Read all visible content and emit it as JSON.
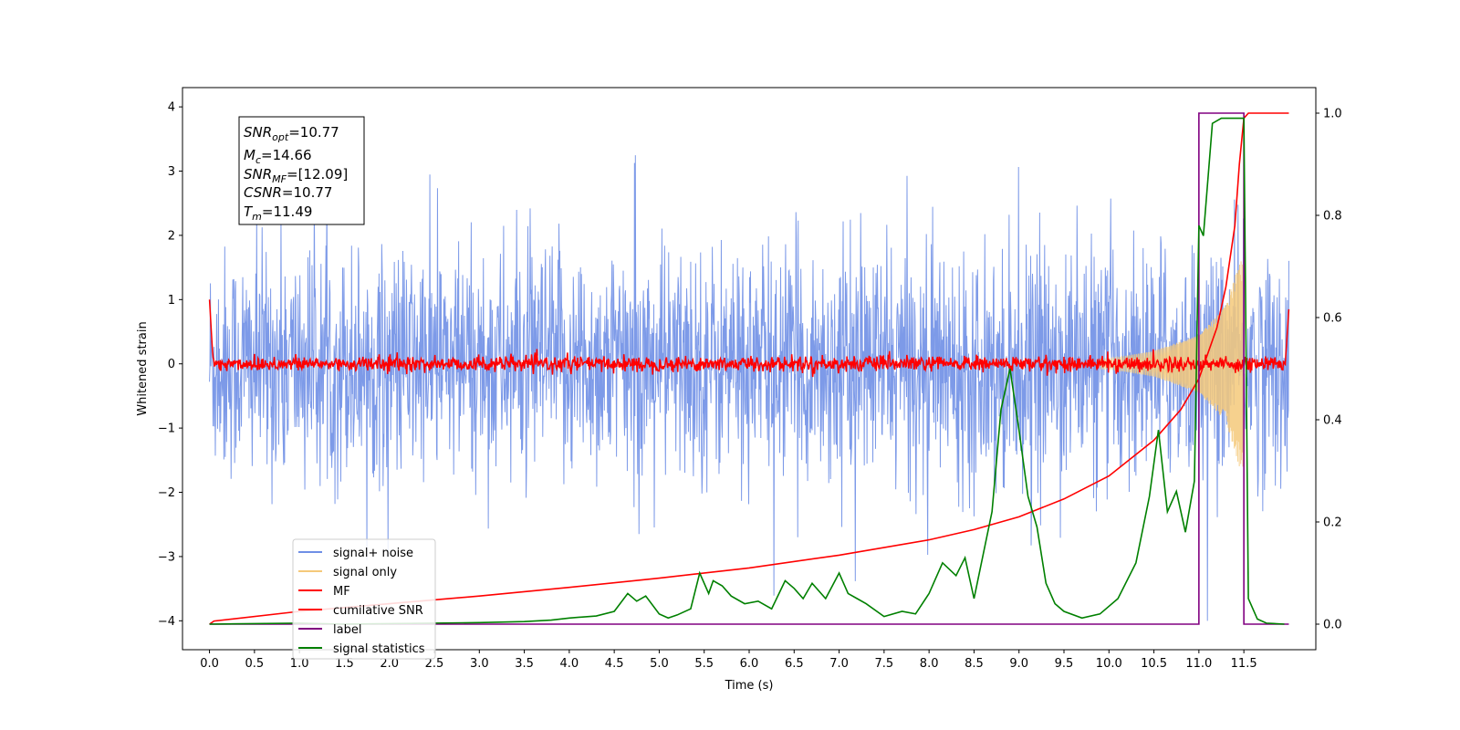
{
  "chart_data": {
    "type": "line",
    "xlabel": "Time (s)",
    "ylabel": "Whitened strain",
    "x_ticks": [
      "0.0",
      "0.5",
      "1.0",
      "1.5",
      "2.0",
      "2.5",
      "3.0",
      "3.5",
      "4.0",
      "4.5",
      "5.0",
      "5.5",
      "6.0",
      "6.5",
      "7.0",
      "7.5",
      "8.0",
      "8.5",
      "9.0",
      "9.5",
      "10.0",
      "10.5",
      "11.0",
      "11.5"
    ],
    "y_left_ticks": [
      "−4",
      "−3",
      "−2",
      "−1",
      "0",
      "1",
      "2",
      "3",
      "4"
    ],
    "y_right_ticks": [
      "0.0",
      "0.2",
      "0.4",
      "0.6",
      "0.8",
      "1.0"
    ],
    "xlim": [
      -0.3,
      12.3
    ],
    "ylim_left": [
      -4.45,
      4.3
    ],
    "ylim_right": [
      -0.05,
      1.05
    ],
    "grid": false,
    "legend_position": "lower-left",
    "annotation": {
      "snr_opt": {
        "base": "SNR",
        "sub": "opt",
        "value": "=10.77"
      },
      "mc": {
        "base": "M",
        "sub": "c",
        "value": "=14.66"
      },
      "snr_mf": {
        "base": "SNR",
        "sub": "MF",
        "value": "=[12.09]"
      },
      "csnr": {
        "base": "CSNR",
        "sub": "",
        "value": "=10.77"
      },
      "tm": {
        "base": "T",
        "sub": "m",
        "value": "=11.49"
      }
    },
    "series": [
      {
        "name": "signal+ noise",
        "color": "#6f8fe6",
        "axis": "left",
        "description_of_shape": "white noise",
        "std": 0.9,
        "x_range": [
          0.0,
          12.0
        ]
      },
      {
        "name": "signal only",
        "color": "#f5c97a",
        "axis": "left",
        "chirp_end": 11.49,
        "envelope": [
          [
            10.0,
            0.08
          ],
          [
            10.5,
            0.2
          ],
          [
            11.0,
            0.45
          ],
          [
            11.3,
            0.9
          ],
          [
            11.45,
            1.6
          ]
        ]
      },
      {
        "name": "MF",
        "color": "#ff0000",
        "axis": "left",
        "std": 0.06,
        "x_range": [
          0.0,
          12.0
        ]
      },
      {
        "name": "cumilative SNR",
        "color": "#ff0000",
        "axis": "right",
        "x": [
          0.0,
          0.05,
          1.0,
          2.0,
          3.0,
          4.0,
          5.0,
          6.0,
          7.0,
          8.0,
          8.5,
          9.0,
          9.5,
          10.0,
          10.5,
          10.8,
          11.0,
          11.2,
          11.3,
          11.4,
          11.45,
          11.5,
          11.55,
          12.0
        ],
        "y": [
          0.0,
          0.006,
          0.025,
          0.04,
          0.055,
          0.072,
          0.09,
          0.11,
          0.135,
          0.165,
          0.185,
          0.21,
          0.245,
          0.29,
          0.36,
          0.42,
          0.48,
          0.58,
          0.66,
          0.78,
          0.9,
          0.99,
          1.0,
          1.0
        ]
      },
      {
        "name": "label",
        "color": "#800080",
        "axis": "right",
        "x": [
          0.0,
          11.0,
          11.0,
          11.5,
          11.5,
          12.0
        ],
        "y": [
          0.0,
          0.0,
          1.0,
          1.0,
          0.0,
          0.0
        ]
      },
      {
        "name": "signal statistics",
        "color": "#008000",
        "axis": "right",
        "x": [
          0.0,
          0.5,
          1.0,
          1.5,
          2.0,
          2.5,
          3.0,
          3.5,
          3.8,
          4.0,
          4.3,
          4.5,
          4.65,
          4.75,
          4.85,
          5.0,
          5.1,
          5.2,
          5.35,
          5.45,
          5.55,
          5.6,
          5.7,
          5.8,
          5.95,
          6.1,
          6.25,
          6.4,
          6.5,
          6.6,
          6.7,
          6.85,
          7.0,
          7.1,
          7.2,
          7.3,
          7.5,
          7.7,
          7.85,
          8.0,
          8.15,
          8.3,
          8.4,
          8.5,
          8.7,
          8.8,
          8.9,
          9.0,
          9.1,
          9.2,
          9.3,
          9.4,
          9.5,
          9.7,
          9.9,
          10.1,
          10.3,
          10.45,
          10.55,
          10.65,
          10.75,
          10.85,
          10.95,
          11.0,
          11.05,
          11.15,
          11.25,
          11.45,
          11.5,
          11.55,
          11.65,
          11.75,
          11.95
        ],
        "y": [
          0.0,
          0.001,
          0.002,
          0.0,
          0.001,
          0.002,
          0.003,
          0.005,
          0.008,
          0.012,
          0.016,
          0.025,
          0.06,
          0.045,
          0.055,
          0.02,
          0.012,
          0.018,
          0.03,
          0.1,
          0.06,
          0.085,
          0.075,
          0.055,
          0.04,
          0.045,
          0.03,
          0.085,
          0.07,
          0.05,
          0.08,
          0.05,
          0.1,
          0.06,
          0.05,
          0.04,
          0.015,
          0.025,
          0.02,
          0.06,
          0.12,
          0.095,
          0.13,
          0.05,
          0.22,
          0.42,
          0.5,
          0.38,
          0.25,
          0.19,
          0.08,
          0.04,
          0.025,
          0.012,
          0.02,
          0.05,
          0.12,
          0.25,
          0.38,
          0.22,
          0.26,
          0.18,
          0.28,
          0.78,
          0.76,
          0.98,
          0.99,
          0.99,
          0.99,
          0.05,
          0.01,
          0.002,
          0.0
        ]
      }
    ]
  }
}
